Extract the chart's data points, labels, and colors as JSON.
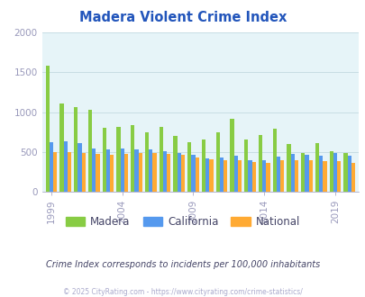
{
  "title": "Madera Violent Crime Index",
  "title_color": "#2255bb",
  "subtitle": "Crime Index corresponds to incidents per 100,000 inhabitants",
  "footer": "© 2025 CityRating.com - https://www.cityrating.com/crime-statistics/",
  "years": [
    1999,
    2000,
    2001,
    2002,
    2003,
    2004,
    2005,
    2006,
    2007,
    2008,
    2009,
    2010,
    2011,
    2012,
    2013,
    2014,
    2015,
    2016,
    2017,
    2018,
    2019,
    2020
  ],
  "madera": [
    1580,
    1110,
    1060,
    1030,
    800,
    810,
    840,
    750,
    810,
    700,
    620,
    660,
    750,
    920,
    660,
    710,
    790,
    600,
    490,
    610,
    510,
    480
  ],
  "california": [
    620,
    630,
    610,
    540,
    530,
    540,
    530,
    530,
    510,
    490,
    460,
    420,
    430,
    450,
    390,
    390,
    440,
    470,
    460,
    450,
    480,
    450
  ],
  "national": [
    500,
    500,
    490,
    470,
    460,
    470,
    490,
    480,
    470,
    460,
    430,
    410,
    390,
    390,
    370,
    365,
    390,
    400,
    395,
    385,
    380,
    365
  ],
  "madera_color": "#88cc44",
  "california_color": "#5599ee",
  "national_color": "#ffaa33",
  "bg_color": "#e6f4f8",
  "ylim": [
    0,
    2000
  ],
  "yticks": [
    0,
    500,
    1000,
    1500,
    2000
  ],
  "xtick_years": [
    1999,
    2004,
    2009,
    2014,
    2019
  ],
  "legend_labels": [
    "Madera",
    "California",
    "National"
  ],
  "grid_color": "#c8dde4",
  "tick_color": "#9999bb",
  "subtitle_color": "#444466",
  "footer_color": "#aaaacc"
}
